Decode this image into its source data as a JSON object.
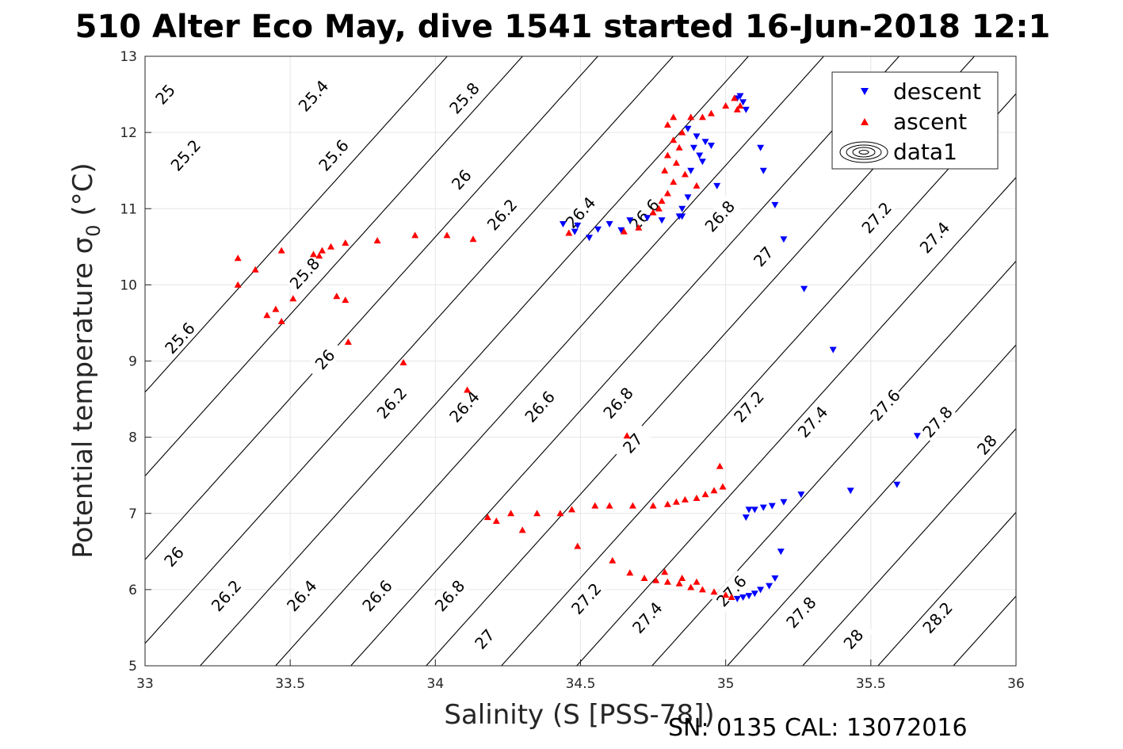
{
  "chart_data": {
    "type": "scatter",
    "title": "510 Alter Eco May, dive 1541 started 16-Jun-2018 12:1",
    "xlabel": "Salinity (S [PSS-78])",
    "ylabel": "Potential temperature σ",
    "ylabel_sub": "0",
    "ylabel_unit": " (°C)",
    "footer": "SN: 0135  CAL: 13072016",
    "xlim": [
      33,
      36
    ],
    "ylim": [
      5,
      13
    ],
    "x_ticks": [
      "33",
      "33.5",
      "34",
      "34.5",
      "35",
      "35.5",
      "36"
    ],
    "y_ticks": [
      "5",
      "6",
      "7",
      "8",
      "9",
      "10",
      "11",
      "12",
      "13"
    ],
    "grid": true,
    "legend_position": "top-right",
    "legend": [
      {
        "label": "descent",
        "marker": "triangle-down",
        "color": "#0000ff"
      },
      {
        "label": "ascent",
        "marker": "triangle-up",
        "color": "#ff0000"
      },
      {
        "label": "data1",
        "marker": "contour",
        "color": "#000000"
      }
    ],
    "contours": {
      "levels": [
        25,
        25.2,
        25.4,
        25.6,
        25.8,
        26,
        26.2,
        26.4,
        26.6,
        26.8,
        27,
        27.2,
        27.4,
        27.6,
        27.8,
        28,
        28.2
      ],
      "labels": [
        {
          "level": "25",
          "x": 33.07,
          "y": 12.5
        },
        {
          "level": "25.4",
          "x": 33.58,
          "y": 12.48
        },
        {
          "level": "25.8",
          "x": 34.1,
          "y": 12.45
        },
        {
          "level": "25.2",
          "x": 33.14,
          "y": 11.7
        },
        {
          "level": "25.6",
          "x": 33.65,
          "y": 11.7
        },
        {
          "level": "26",
          "x": 34.09,
          "y": 11.38
        },
        {
          "level": "26.2",
          "x": 34.23,
          "y": 10.92
        },
        {
          "level": "26.4",
          "x": 34.5,
          "y": 10.95
        },
        {
          "level": "26.6",
          "x": 34.72,
          "y": 10.92
        },
        {
          "level": "26.8",
          "x": 34.98,
          "y": 10.9
        },
        {
          "level": "27",
          "x": 35.13,
          "y": 10.37
        },
        {
          "level": "27.2",
          "x": 35.52,
          "y": 10.88
        },
        {
          "level": "27.4",
          "x": 35.72,
          "y": 10.62
        },
        {
          "level": "25.8",
          "x": 33.55,
          "y": 10.15
        },
        {
          "level": "25.6",
          "x": 33.12,
          "y": 9.3
        },
        {
          "level": "26",
          "x": 33.62,
          "y": 9.02
        },
        {
          "level": "26.2",
          "x": 33.85,
          "y": 8.45
        },
        {
          "level": "26.4",
          "x": 34.1,
          "y": 8.4
        },
        {
          "level": "26.6",
          "x": 34.36,
          "y": 8.4
        },
        {
          "level": "26.8",
          "x": 34.63,
          "y": 8.45
        },
        {
          "level": "27",
          "x": 34.68,
          "y": 7.92
        },
        {
          "level": "27.2",
          "x": 35.08,
          "y": 8.4
        },
        {
          "level": "27.4",
          "x": 35.3,
          "y": 8.2
        },
        {
          "level": "27.6",
          "x": 35.55,
          "y": 8.42
        },
        {
          "level": "27.8",
          "x": 35.73,
          "y": 8.2
        },
        {
          "level": "28",
          "x": 35.9,
          "y": 7.9
        },
        {
          "level": "26",
          "x": 33.1,
          "y": 6.43
        },
        {
          "level": "26.2",
          "x": 33.28,
          "y": 5.92
        },
        {
          "level": "26.4",
          "x": 33.54,
          "y": 5.92
        },
        {
          "level": "26.6",
          "x": 33.8,
          "y": 5.92
        },
        {
          "level": "26.8",
          "x": 34.05,
          "y": 5.92
        },
        {
          "level": "27",
          "x": 34.17,
          "y": 5.35
        },
        {
          "level": "27.2",
          "x": 34.52,
          "y": 5.88
        },
        {
          "level": "27.4",
          "x": 34.73,
          "y": 5.63
        },
        {
          "level": "27.6",
          "x": 35.02,
          "y": 5.98
        },
        {
          "level": "27.8",
          "x": 35.26,
          "y": 5.7
        },
        {
          "level": "28",
          "x": 35.44,
          "y": 5.35
        },
        {
          "level": "28.2",
          "x": 35.73,
          "y": 5.63
        }
      ]
    },
    "series": [
      {
        "name": "descent",
        "marker": "triangle-down",
        "color": "#0000ff",
        "points": [
          [
            35.05,
            12.48
          ],
          [
            35.06,
            12.4
          ],
          [
            35.07,
            12.3
          ],
          [
            35.04,
            12.45
          ],
          [
            34.87,
            12.05
          ],
          [
            34.9,
            11.95
          ],
          [
            34.93,
            11.88
          ],
          [
            34.95,
            11.83
          ],
          [
            34.89,
            11.8
          ],
          [
            34.91,
            11.7
          ],
          [
            34.92,
            11.62
          ],
          [
            34.88,
            11.5
          ],
          [
            34.97,
            11.3
          ],
          [
            34.87,
            11.15
          ],
          [
            34.85,
            11.0
          ],
          [
            34.84,
            10.9
          ],
          [
            34.78,
            10.85
          ],
          [
            34.73,
            10.88
          ],
          [
            34.67,
            10.85
          ],
          [
            34.6,
            10.8
          ],
          [
            34.56,
            10.73
          ],
          [
            34.49,
            10.78
          ],
          [
            34.48,
            10.7
          ],
          [
            34.53,
            10.62
          ],
          [
            34.64,
            10.72
          ],
          [
            34.44,
            10.8
          ],
          [
            34.85,
            10.9
          ],
          [
            35.12,
            11.8
          ],
          [
            35.13,
            11.5
          ],
          [
            35.17,
            11.05
          ],
          [
            35.2,
            10.6
          ],
          [
            35.27,
            9.95
          ],
          [
            35.37,
            9.15
          ],
          [
            35.66,
            8.02
          ],
          [
            35.59,
            7.38
          ],
          [
            35.43,
            7.3
          ],
          [
            35.26,
            7.25
          ],
          [
            35.2,
            7.15
          ],
          [
            35.16,
            7.1
          ],
          [
            35.13,
            7.08
          ],
          [
            35.1,
            7.05
          ],
          [
            35.08,
            7.05
          ],
          [
            35.07,
            6.95
          ],
          [
            35.19,
            6.5
          ],
          [
            35.17,
            6.15
          ],
          [
            35.15,
            6.05
          ],
          [
            35.12,
            6.0
          ],
          [
            35.1,
            5.95
          ],
          [
            35.08,
            5.92
          ],
          [
            35.06,
            5.9
          ],
          [
            35.04,
            5.88
          ]
        ]
      },
      {
        "name": "ascent",
        "marker": "triangle-up",
        "color": "#ff0000",
        "points": [
          [
            33.32,
            10.35
          ],
          [
            33.38,
            10.2
          ],
          [
            33.47,
            10.45
          ],
          [
            33.58,
            10.4
          ],
          [
            33.61,
            10.45
          ],
          [
            33.64,
            10.5
          ],
          [
            33.69,
            10.55
          ],
          [
            33.8,
            10.58
          ],
          [
            33.93,
            10.65
          ],
          [
            34.04,
            10.65
          ],
          [
            34.13,
            10.6
          ],
          [
            33.32,
            10.0
          ],
          [
            33.42,
            9.6
          ],
          [
            33.45,
            9.68
          ],
          [
            33.47,
            9.52
          ],
          [
            33.51,
            9.82
          ],
          [
            33.6,
            10.38
          ],
          [
            33.66,
            9.85
          ],
          [
            33.69,
            9.8
          ],
          [
            33.7,
            9.25
          ],
          [
            33.89,
            8.98
          ],
          [
            34.11,
            8.62
          ],
          [
            34.46,
            10.68
          ],
          [
            34.65,
            10.7
          ],
          [
            34.7,
            10.75
          ],
          [
            34.75,
            10.95
          ],
          [
            34.78,
            11.1
          ],
          [
            34.8,
            11.2
          ],
          [
            34.82,
            11.35
          ],
          [
            34.79,
            11.5
          ],
          [
            34.83,
            11.6
          ],
          [
            34.8,
            11.7
          ],
          [
            34.84,
            11.8
          ],
          [
            34.82,
            11.9
          ],
          [
            34.85,
            12.0
          ],
          [
            34.8,
            12.1
          ],
          [
            34.82,
            12.2
          ],
          [
            34.88,
            12.2
          ],
          [
            34.95,
            12.25
          ],
          [
            35.0,
            12.35
          ],
          [
            35.03,
            12.45
          ],
          [
            35.05,
            12.35
          ],
          [
            34.9,
            11.3
          ],
          [
            34.86,
            11.45
          ],
          [
            34.77,
            11.0
          ],
          [
            34.92,
            12.2
          ],
          [
            35.04,
            12.3
          ],
          [
            34.66,
            8.02
          ],
          [
            34.98,
            7.62
          ],
          [
            34.18,
            6.95
          ],
          [
            34.21,
            6.9
          ],
          [
            34.26,
            7.0
          ],
          [
            34.3,
            6.78
          ],
          [
            34.35,
            7.0
          ],
          [
            34.43,
            7.0
          ],
          [
            34.47,
            7.05
          ],
          [
            34.55,
            7.1
          ],
          [
            34.6,
            7.1
          ],
          [
            34.68,
            7.1
          ],
          [
            34.75,
            7.1
          ],
          [
            34.8,
            7.12
          ],
          [
            34.83,
            7.15
          ],
          [
            34.86,
            7.18
          ],
          [
            34.9,
            7.2
          ],
          [
            34.93,
            7.25
          ],
          [
            34.96,
            7.3
          ],
          [
            34.99,
            7.35
          ],
          [
            34.49,
            6.57
          ],
          [
            34.61,
            6.38
          ],
          [
            34.67,
            6.22
          ],
          [
            34.72,
            6.15
          ],
          [
            34.76,
            6.12
          ],
          [
            34.8,
            6.1
          ],
          [
            34.84,
            6.08
          ],
          [
            34.88,
            6.03
          ],
          [
            34.92,
            6.0
          ],
          [
            34.96,
            5.97
          ],
          [
            35.0,
            5.93
          ],
          [
            35.02,
            5.9
          ],
          [
            34.79,
            6.23
          ],
          [
            34.85,
            6.15
          ],
          [
            34.9,
            6.1
          ]
        ]
      }
    ]
  }
}
